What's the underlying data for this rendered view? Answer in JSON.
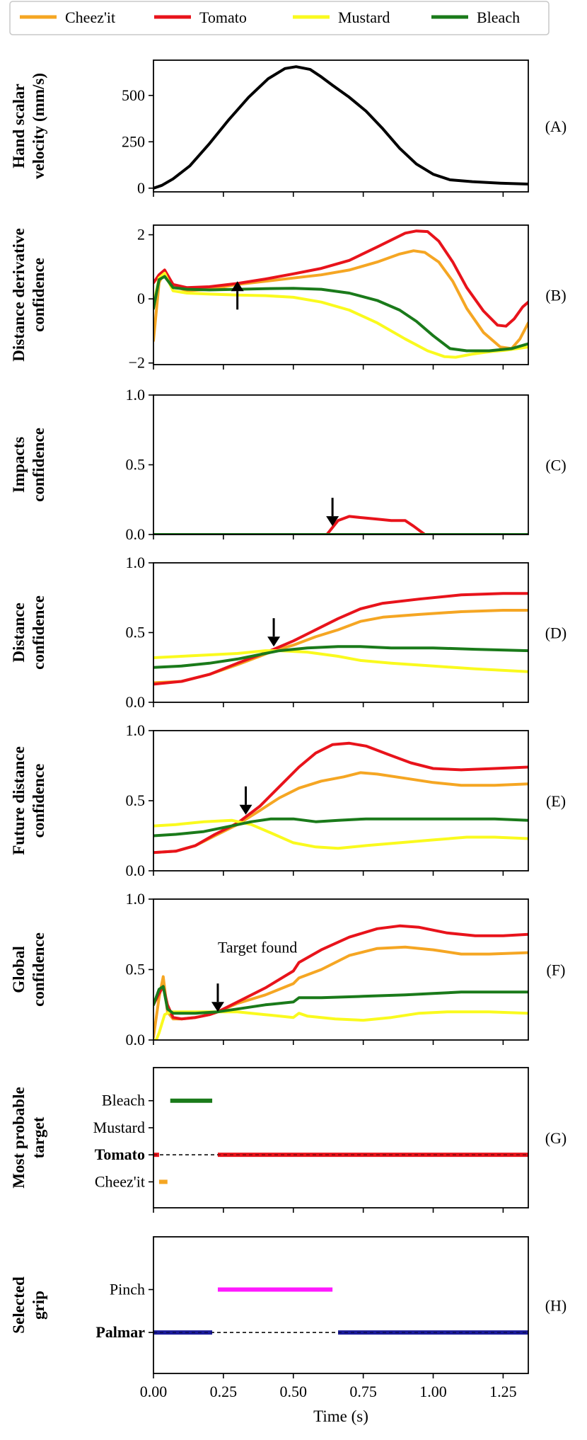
{
  "legend": [
    {
      "label": "Cheez'it",
      "color": "#f5a623"
    },
    {
      "label": "Tomato",
      "color": "#e8131b"
    },
    {
      "label": "Mustard",
      "color": "#fafa1e"
    },
    {
      "label": "Bleach",
      "color": "#1a7a1a"
    }
  ],
  "x_axis": {
    "label": "Time (s)",
    "range": [
      0,
      1.34
    ],
    "ticks": [
      0.0,
      0.25,
      0.5,
      0.75,
      1.0,
      1.25
    ],
    "tick_labels": [
      "0.00",
      "0.25",
      "0.50",
      "0.75",
      "1.00",
      "1.25"
    ]
  },
  "chart_data": [
    {
      "panel": "(A)",
      "type": "line",
      "ylabel": [
        "Hand scalar",
        "velocity (mm/s)"
      ],
      "ylim": [
        -20,
        690
      ],
      "yticks": [
        0,
        250,
        500
      ],
      "series": [
        {
          "color": "#000000",
          "x": [
            0,
            0.03,
            0.07,
            0.13,
            0.2,
            0.27,
            0.34,
            0.41,
            0.47,
            0.51,
            0.56,
            0.6,
            0.64,
            0.7,
            0.76,
            0.82,
            0.88,
            0.94,
            1.0,
            1.06,
            1.14,
            1.24,
            1.34
          ],
          "y": [
            0,
            15,
            50,
            120,
            240,
            370,
            490,
            590,
            645,
            655,
            640,
            600,
            555,
            490,
            415,
            320,
            215,
            130,
            75,
            45,
            35,
            27,
            22
          ]
        }
      ]
    },
    {
      "panel": "(B)",
      "type": "line",
      "ylabel": [
        "Distance derivative",
        "confidence"
      ],
      "ylim": [
        -2.05,
        2.3
      ],
      "yticks": [
        -2,
        0,
        2
      ],
      "yticklabels": [
        "−2",
        "0",
        "2"
      ],
      "arrow": {
        "x": 0.3,
        "y_data_tip": 0.55,
        "direction": "up"
      },
      "series": [
        {
          "color": "#f5a623",
          "x": [
            0,
            0.02,
            0.04,
            0.07,
            0.12,
            0.2,
            0.3,
            0.4,
            0.5,
            0.6,
            0.7,
            0.8,
            0.88,
            0.93,
            0.97,
            1.02,
            1.07,
            1.12,
            1.18,
            1.24,
            1.28,
            1.31,
            1.34
          ],
          "y": [
            -1.3,
            0.5,
            0.9,
            0.4,
            0.25,
            0.3,
            0.45,
            0.55,
            0.65,
            0.75,
            0.9,
            1.15,
            1.4,
            1.5,
            1.45,
            1.15,
            0.55,
            -0.3,
            -1.05,
            -1.5,
            -1.55,
            -1.25,
            -0.75
          ]
        },
        {
          "color": "#e8131b",
          "x": [
            0,
            0.02,
            0.04,
            0.07,
            0.12,
            0.2,
            0.3,
            0.4,
            0.5,
            0.6,
            0.7,
            0.8,
            0.9,
            0.94,
            0.98,
            1.02,
            1.07,
            1.12,
            1.18,
            1.23,
            1.26,
            1.29,
            1.32,
            1.34
          ],
          "y": [
            0.5,
            0.75,
            0.9,
            0.45,
            0.35,
            0.38,
            0.48,
            0.62,
            0.78,
            0.95,
            1.2,
            1.62,
            2.05,
            2.12,
            2.1,
            1.8,
            1.15,
            0.35,
            -0.38,
            -0.82,
            -0.85,
            -0.62,
            -0.25,
            -0.1
          ]
        },
        {
          "color": "#fafa1e",
          "x": [
            0,
            0.02,
            0.04,
            0.07,
            0.12,
            0.2,
            0.3,
            0.4,
            0.5,
            0.6,
            0.7,
            0.8,
            0.9,
            0.98,
            1.04,
            1.08,
            1.14,
            1.2,
            1.26,
            1.34
          ],
          "y": [
            -0.2,
            0.65,
            0.8,
            0.25,
            0.18,
            0.15,
            0.12,
            0.1,
            0.05,
            -0.1,
            -0.35,
            -0.75,
            -1.25,
            -1.62,
            -1.8,
            -1.82,
            -1.72,
            -1.65,
            -1.6,
            -1.5
          ]
        },
        {
          "color": "#1a7a1a",
          "x": [
            0,
            0.02,
            0.04,
            0.07,
            0.12,
            0.2,
            0.3,
            0.4,
            0.5,
            0.6,
            0.7,
            0.8,
            0.88,
            0.94,
            1.0,
            1.06,
            1.12,
            1.2,
            1.28,
            1.34
          ],
          "y": [
            -0.3,
            0.6,
            0.7,
            0.35,
            0.3,
            0.28,
            0.3,
            0.32,
            0.33,
            0.3,
            0.18,
            -0.05,
            -0.35,
            -0.7,
            -1.15,
            -1.55,
            -1.62,
            -1.62,
            -1.55,
            -1.4
          ]
        }
      ]
    },
    {
      "panel": "(C)",
      "type": "line",
      "ylabel": [
        "Impacts",
        "confidence"
      ],
      "ylim": [
        0,
        1.0
      ],
      "yticks": [
        0.0,
        0.5,
        1.0
      ],
      "yticklabels": [
        "0.0",
        "0.5",
        "1.0"
      ],
      "arrow": {
        "x": 0.64,
        "y_data_tip": 0.06,
        "direction": "down"
      },
      "series": [
        {
          "color": "#f5a623",
          "x": [
            0,
            1.34
          ],
          "y": [
            0,
            0
          ]
        },
        {
          "color": "#fafa1e",
          "x": [
            0,
            1.34
          ],
          "y": [
            0,
            0
          ]
        },
        {
          "color": "#e8131b",
          "x": [
            0,
            0.62,
            0.64,
            0.66,
            0.7,
            0.75,
            0.8,
            0.85,
            0.9,
            0.93,
            0.97,
            1.34
          ],
          "y": [
            0,
            0,
            0.05,
            0.1,
            0.13,
            0.12,
            0.11,
            0.1,
            0.1,
            0.06,
            0,
            0
          ]
        },
        {
          "color": "#1a7a1a",
          "x": [
            0,
            1.34
          ],
          "y": [
            0,
            0
          ]
        }
      ]
    },
    {
      "panel": "(D)",
      "type": "line",
      "ylabel": [
        "Distance",
        "confidence"
      ],
      "ylim": [
        0,
        1.0
      ],
      "yticks": [
        0.0,
        0.5,
        1.0
      ],
      "yticklabels": [
        "0.0",
        "0.5",
        "1.0"
      ],
      "arrow": {
        "x": 0.43,
        "y_data_tip": 0.4,
        "direction": "down"
      },
      "series": [
        {
          "color": "#f5a623",
          "x": [
            0,
            0.1,
            0.2,
            0.3,
            0.38,
            0.43,
            0.5,
            0.58,
            0.66,
            0.74,
            0.82,
            0.95,
            1.1,
            1.25,
            1.34
          ],
          "y": [
            0.14,
            0.15,
            0.2,
            0.27,
            0.33,
            0.37,
            0.41,
            0.47,
            0.52,
            0.58,
            0.61,
            0.63,
            0.65,
            0.66,
            0.66
          ]
        },
        {
          "color": "#e8131b",
          "x": [
            0,
            0.1,
            0.2,
            0.3,
            0.38,
            0.43,
            0.5,
            0.58,
            0.66,
            0.74,
            0.82,
            0.95,
            1.1,
            1.25,
            1.34
          ],
          "y": [
            0.13,
            0.15,
            0.2,
            0.28,
            0.34,
            0.38,
            0.44,
            0.52,
            0.6,
            0.67,
            0.71,
            0.74,
            0.77,
            0.78,
            0.78
          ]
        },
        {
          "color": "#fafa1e",
          "x": [
            0,
            0.1,
            0.2,
            0.3,
            0.4,
            0.45,
            0.55,
            0.66,
            0.74,
            0.85,
            1.0,
            1.15,
            1.34
          ],
          "y": [
            0.32,
            0.33,
            0.34,
            0.35,
            0.37,
            0.37,
            0.36,
            0.33,
            0.3,
            0.28,
            0.26,
            0.24,
            0.22
          ]
        },
        {
          "color": "#1a7a1a",
          "x": [
            0,
            0.1,
            0.2,
            0.3,
            0.4,
            0.45,
            0.55,
            0.66,
            0.74,
            0.85,
            1.0,
            1.15,
            1.34
          ],
          "y": [
            0.25,
            0.26,
            0.28,
            0.31,
            0.35,
            0.37,
            0.39,
            0.4,
            0.4,
            0.39,
            0.39,
            0.38,
            0.37
          ]
        }
      ]
    },
    {
      "panel": "(E)",
      "type": "line",
      "ylabel": [
        "Future distance",
        "confidence"
      ],
      "ylim": [
        0,
        1.0
      ],
      "yticks": [
        0.0,
        0.5,
        1.0
      ],
      "yticklabels": [
        "0.0",
        "0.5",
        "1.0"
      ],
      "arrow": {
        "x": 0.33,
        "y_data_tip": 0.4,
        "direction": "down"
      },
      "series": [
        {
          "color": "#f5a623",
          "x": [
            0,
            0.08,
            0.15,
            0.22,
            0.3,
            0.38,
            0.45,
            0.52,
            0.6,
            0.68,
            0.74,
            0.8,
            0.9,
            1.0,
            1.1,
            1.22,
            1.34
          ],
          "y": [
            0.13,
            0.14,
            0.18,
            0.25,
            0.33,
            0.43,
            0.52,
            0.59,
            0.64,
            0.67,
            0.7,
            0.69,
            0.66,
            0.63,
            0.61,
            0.61,
            0.62
          ]
        },
        {
          "color": "#e8131b",
          "x": [
            0,
            0.08,
            0.15,
            0.22,
            0.3,
            0.38,
            0.45,
            0.52,
            0.58,
            0.64,
            0.7,
            0.76,
            0.84,
            0.92,
            1.0,
            1.1,
            1.22,
            1.34
          ],
          "y": [
            0.13,
            0.14,
            0.18,
            0.26,
            0.34,
            0.46,
            0.6,
            0.74,
            0.84,
            0.9,
            0.91,
            0.89,
            0.83,
            0.77,
            0.73,
            0.72,
            0.73,
            0.74
          ]
        },
        {
          "color": "#fafa1e",
          "x": [
            0,
            0.08,
            0.18,
            0.28,
            0.35,
            0.42,
            0.5,
            0.58,
            0.66,
            0.76,
            0.88,
            1.0,
            1.12,
            1.22,
            1.34
          ],
          "y": [
            0.32,
            0.33,
            0.35,
            0.36,
            0.33,
            0.27,
            0.2,
            0.17,
            0.16,
            0.18,
            0.2,
            0.22,
            0.24,
            0.24,
            0.23
          ]
        },
        {
          "color": "#1a7a1a",
          "x": [
            0,
            0.08,
            0.18,
            0.28,
            0.35,
            0.42,
            0.5,
            0.58,
            0.66,
            0.76,
            0.88,
            1.0,
            1.12,
            1.22,
            1.34
          ],
          "y": [
            0.25,
            0.26,
            0.28,
            0.32,
            0.35,
            0.37,
            0.37,
            0.35,
            0.36,
            0.37,
            0.37,
            0.37,
            0.37,
            0.37,
            0.36
          ]
        }
      ]
    },
    {
      "panel": "(F)",
      "type": "line",
      "ylabel": [
        "Global",
        "confidence"
      ],
      "ylim": [
        0,
        1.0
      ],
      "yticks": [
        0.0,
        0.5,
        1.0
      ],
      "yticklabels": [
        "0.0",
        "0.5",
        "1.0"
      ],
      "arrow": {
        "x": 0.23,
        "y_data_tip": 0.2,
        "direction": "down"
      },
      "annotation": {
        "text": "Target found",
        "x": 0.23,
        "y": 0.5
      },
      "series": [
        {
          "color": "#f5a623",
          "x": [
            0,
            0.02,
            0.035,
            0.05,
            0.07,
            0.1,
            0.15,
            0.2,
            0.23,
            0.3,
            0.4,
            0.5,
            0.52,
            0.6,
            0.7,
            0.8,
            0.9,
            1.0,
            1.1,
            1.2,
            1.34
          ],
          "y": [
            0.02,
            0.3,
            0.45,
            0.2,
            0.15,
            0.15,
            0.16,
            0.18,
            0.2,
            0.26,
            0.32,
            0.4,
            0.44,
            0.5,
            0.6,
            0.65,
            0.66,
            0.64,
            0.61,
            0.61,
            0.62
          ]
        },
        {
          "color": "#e8131b",
          "x": [
            0,
            0.02,
            0.035,
            0.05,
            0.07,
            0.1,
            0.15,
            0.2,
            0.23,
            0.3,
            0.4,
            0.5,
            0.52,
            0.6,
            0.7,
            0.8,
            0.88,
            0.95,
            1.05,
            1.15,
            1.25,
            1.34
          ],
          "y": [
            0.25,
            0.33,
            0.38,
            0.25,
            0.16,
            0.15,
            0.16,
            0.18,
            0.2,
            0.27,
            0.37,
            0.49,
            0.55,
            0.64,
            0.73,
            0.79,
            0.81,
            0.8,
            0.76,
            0.74,
            0.74,
            0.75
          ]
        },
        {
          "color": "#fafa1e",
          "x": [
            0,
            0.01,
            0.02,
            0.04,
            0.06,
            0.1,
            0.2,
            0.3,
            0.4,
            0.5,
            0.52,
            0.55,
            0.65,
            0.75,
            0.85,
            0.95,
            1.05,
            1.2,
            1.34
          ],
          "y": [
            0.0,
            0.0,
            0.05,
            0.18,
            0.2,
            0.2,
            0.2,
            0.2,
            0.18,
            0.16,
            0.19,
            0.17,
            0.15,
            0.14,
            0.16,
            0.19,
            0.2,
            0.2,
            0.19
          ]
        },
        {
          "color": "#1a7a1a",
          "x": [
            0,
            0.02,
            0.035,
            0.05,
            0.07,
            0.15,
            0.23,
            0.3,
            0.4,
            0.5,
            0.52,
            0.6,
            0.75,
            0.9,
            1.0,
            1.1,
            1.2,
            1.34
          ],
          "y": [
            0.25,
            0.36,
            0.38,
            0.22,
            0.19,
            0.19,
            0.2,
            0.22,
            0.25,
            0.27,
            0.3,
            0.3,
            0.31,
            0.32,
            0.33,
            0.34,
            0.34,
            0.34
          ]
        }
      ]
    },
    {
      "panel": "(G)",
      "type": "timeline",
      "ylabel": [
        "Most probable",
        "target"
      ],
      "categories": [
        "Cheez'it",
        "Tomato",
        "Mustard",
        "Bleach"
      ],
      "highlight": {
        "category": "Tomato",
        "color": "#e8131b"
      },
      "dashed_reference": "Tomato",
      "segments": [
        {
          "category": "Bleach",
          "color": "#1a7a1a",
          "x0": 0.06,
          "x1": 0.21
        },
        {
          "category": "Tomato",
          "color": "#e8131b",
          "x0": 0.0,
          "x1": 0.02
        },
        {
          "category": "Tomato",
          "color": "#e8131b",
          "x0": 0.23,
          "x1": 1.34
        },
        {
          "category": "Cheez'it",
          "color": "#f5a623",
          "x0": 0.02,
          "x1": 0.05
        }
      ]
    },
    {
      "panel": "(H)",
      "type": "timeline",
      "ylabel": [
        "Selected",
        "grip"
      ],
      "categories": [
        "Palmar",
        "Pinch"
      ],
      "highlight": {
        "category": "Palmar",
        "color": "#1a1adc"
      },
      "dashed_reference": "Palmar",
      "segments": [
        {
          "category": "Pinch",
          "color": "#ff1aff",
          "x0": 0.23,
          "x1": 0.64
        },
        {
          "category": "Palmar",
          "color": "#1a1a99",
          "x0": 0.0,
          "x1": 0.21
        },
        {
          "category": "Palmar",
          "color": "#1a1a99",
          "x0": 0.66,
          "x1": 1.34
        }
      ]
    }
  ]
}
